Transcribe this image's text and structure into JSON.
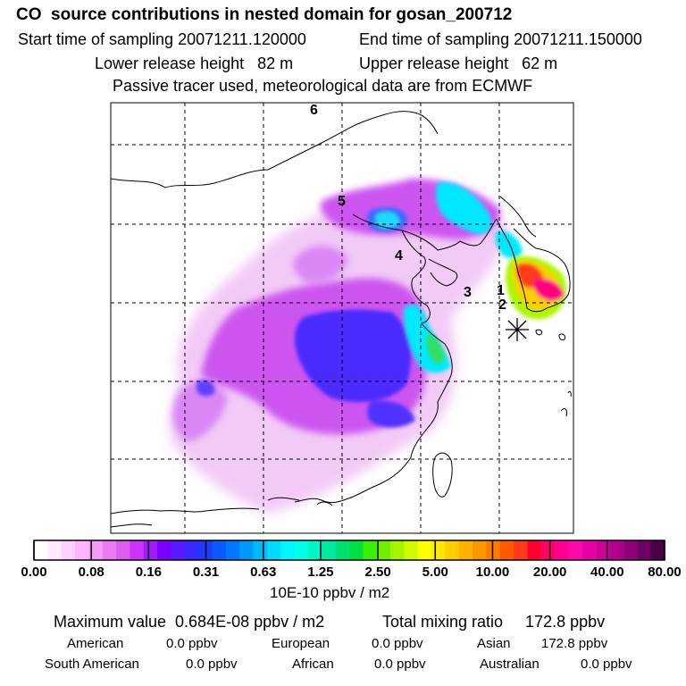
{
  "header": {
    "title": "CO  source contributions in nested domain for gosan_200712",
    "start": "Start time of sampling 20071211.120000",
    "end": "End time of sampling 20071211.150000",
    "lower": "Lower release height   82 m",
    "upper": "Upper release height   62 m",
    "note": "Passive tracer used, meteorological data are from ECMWF"
  },
  "map": {
    "markers": [
      "6",
      "5",
      "4",
      "3",
      "1",
      "2"
    ],
    "receptor_icon": "asterisk-icon"
  },
  "colorbar": {
    "labels": [
      "0.00",
      "0.08",
      "0.16",
      "0.31",
      "0.63",
      "1.25",
      "2.50",
      "5.00",
      "10.00",
      "20.00",
      "40.00",
      "80.00"
    ],
    "units": "10E-10 ppbv / m2",
    "colors": [
      "#ffffff",
      "#ffe9ff",
      "#ffd0ff",
      "#ffb6ff",
      "#f59af7",
      "#ea7cf2",
      "#dc5ef0",
      "#cc33ff",
      "#a31aff",
      "#7b00ff",
      "#5a1aff",
      "#3a2aff",
      "#1a3cff",
      "#0a5aff",
      "#0078ff",
      "#0098ff",
      "#00baff",
      "#00daff",
      "#00f5ff",
      "#00ffea",
      "#00f5c8",
      "#00eaa0",
      "#00e070",
      "#00e040",
      "#3aef00",
      "#70f000",
      "#a6f500",
      "#d0fa00",
      "#ffff00",
      "#ffe800",
      "#ffcc00",
      "#ffb000",
      "#ff9500",
      "#ff7a00",
      "#ff5a00",
      "#ff3a1a",
      "#ff0033",
      "#ff0066",
      "#ff0090",
      "#ff0aa8",
      "#e600a6",
      "#cc0099",
      "#b0008a",
      "#8f007a",
      "#6e0066",
      "#4a0046"
    ]
  },
  "summary": {
    "max": "Maximum value  0.684E-08 ppbv / m2",
    "total": "Total mixing ratio     172.8 ppbv",
    "american_label": "American",
    "american_value": "0.0 ppbv",
    "european_label": "European",
    "european_value": "0.0 ppbv",
    "asian_label": "Asian",
    "asian_value": "172.8 ppbv",
    "samerican_label": "South American",
    "samerican_value": "0.0 ppbv",
    "african_label": "African",
    "african_value": "0.0 ppbv",
    "australian_label": "Australian",
    "australian_value": "0.0 ppbv"
  }
}
